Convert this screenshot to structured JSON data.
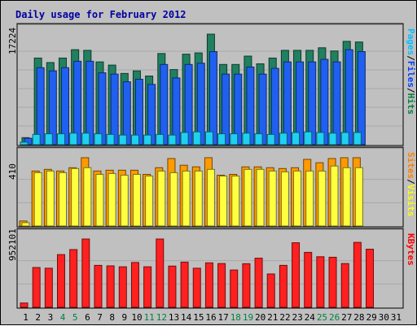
{
  "chart_data": {
    "type": "bar",
    "title": "Daily usage for February 2012",
    "days": [
      "1",
      "2",
      "3",
      "4",
      "5",
      "6",
      "7",
      "8",
      "9",
      "10",
      "11",
      "12",
      "13",
      "14",
      "15",
      "16",
      "17",
      "18",
      "19",
      "20",
      "21",
      "22",
      "23",
      "24",
      "25",
      "26",
      "27",
      "28",
      "29",
      "30",
      "31"
    ],
    "weekend_days": [
      "4",
      "5",
      "11",
      "12",
      "18",
      "19",
      "25",
      "26"
    ],
    "panels": [
      {
        "id": "hits",
        "max_label": "17224",
        "max": 17224,
        "side_labels": [
          {
            "text": "Pages",
            "color": "#00c0ff"
          },
          {
            "text": "Files",
            "color": "#0040ff"
          },
          {
            "text": "Hits",
            "color": "#008040"
          }
        ],
        "series": [
          {
            "name": "Hits",
            "color": "#208060",
            "values": [
              1100,
              13500,
              12800,
              13500,
              14800,
              14700,
              12900,
              12400,
              11100,
              11500,
              10700,
              14200,
              11700,
              14100,
              14300,
              17224,
              12500,
              12500,
              13800,
              12600,
              13500,
              14700,
              14700,
              14700,
              15100,
              14600,
              16100,
              16000,
              null,
              null,
              null
            ]
          },
          {
            "name": "Files",
            "color": "#2060f0",
            "values": [
              1000,
              12000,
              11500,
              12000,
              13000,
              13000,
              11200,
              11000,
              9800,
              10200,
              9400,
              12500,
              10400,
              12500,
              12700,
              14500,
              11000,
              11000,
              12100,
              11000,
              11900,
              12900,
              12900,
              12900,
              13300,
              12900,
              14800,
              14500,
              null,
              null,
              null
            ]
          },
          {
            "name": "Pages",
            "color": "#20d0f0",
            "values": [
              400,
              1600,
              1700,
              1700,
              1800,
              1800,
              1700,
              1600,
              1500,
              1500,
              1500,
              1600,
              1500,
              1900,
              2000,
              2000,
              1700,
              1700,
              1800,
              1700,
              1600,
              1800,
              1900,
              2000,
              1900,
              1800,
              1900,
              1900,
              null,
              null,
              null
            ]
          }
        ]
      },
      {
        "id": "visits",
        "max_label": "410",
        "max": 410,
        "side_labels": [
          {
            "text": "Sites",
            "color": "#ff8000"
          },
          {
            "text": "Visits",
            "color": "#ffff00"
          }
        ],
        "series": [
          {
            "name": "Visits",
            "color": "#ff9a00",
            "values": [
              30,
              330,
              340,
              330,
              350,
              410,
              330,
              335,
              335,
              335,
              310,
              350,
              405,
              365,
              355,
              410,
              305,
              310,
              355,
              355,
              350,
              345,
              350,
              400,
              380,
              405,
              410,
              410,
              null,
              null,
              null
            ]
          },
          {
            "name": "Sites",
            "color": "#ffff40",
            "values": [
              20,
              320,
              330,
              320,
              345,
              350,
              310,
              315,
              305,
              310,
              300,
              330,
              320,
              330,
              330,
              340,
              300,
              300,
              340,
              340,
              330,
              325,
              330,
              330,
              330,
              360,
              350,
              350,
              null,
              null,
              null
            ]
          }
        ]
      },
      {
        "id": "kbytes",
        "max_label": "952101",
        "max": 952101,
        "side_labels": [
          {
            "text": "KBytes",
            "color": "#ff0000"
          }
        ],
        "series": [
          {
            "name": "KBytes",
            "color": "#ff2020",
            "values": [
              60000,
              555000,
              545000,
              735000,
              805000,
              952101,
              585000,
              578000,
              565000,
              625000,
              565000,
              952101,
              575000,
              630000,
              545000,
              620000,
              610000,
              520000,
              608000,
              685000,
              465000,
              585000,
              900000,
              766000,
              705000,
              698000,
              610000,
              905000,
              810000,
              null,
              null
            ]
          }
        ]
      }
    ]
  }
}
